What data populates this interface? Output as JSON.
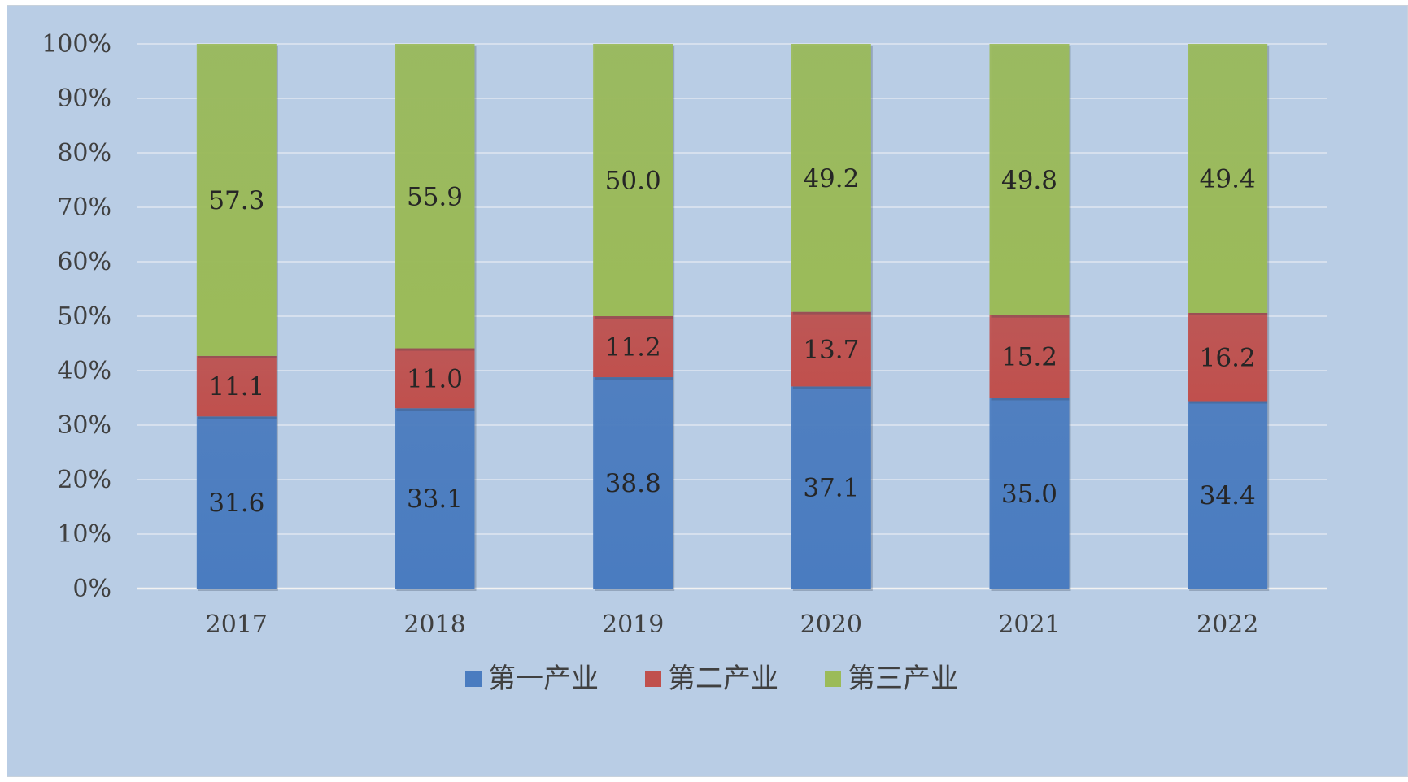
{
  "chart_data": {
    "type": "bar",
    "stacked": true,
    "percent_stacked": true,
    "categories": [
      "2017",
      "2018",
      "2019",
      "2020",
      "2021",
      "2022"
    ],
    "series": [
      {
        "name": "第一产业",
        "color": "#4a7cc0",
        "values": [
          31.6,
          33.1,
          38.8,
          37.1,
          35.0,
          34.4
        ],
        "labels": [
          "31.6",
          "33.1",
          "38.8",
          "37.1",
          "35.0",
          "34.4"
        ]
      },
      {
        "name": "第二产业",
        "color": "#c0504d",
        "values": [
          11.1,
          11.0,
          11.2,
          13.7,
          15.2,
          16.2
        ],
        "labels": [
          "11.1",
          "11.0",
          "11.2",
          "13.7",
          "15.2",
          "16.2"
        ]
      },
      {
        "name": "第三产业",
        "color": "#9bbb59",
        "values": [
          57.3,
          55.9,
          50.0,
          49.2,
          49.8,
          49.4
        ],
        "labels": [
          "57.3",
          "55.9",
          "50.0",
          "49.2",
          "49.8",
          "49.4"
        ]
      }
    ],
    "yticks": [
      "0%",
      "10%",
      "20%",
      "30%",
      "40%",
      "50%",
      "60%",
      "70%",
      "80%",
      "90%",
      "100%"
    ],
    "ylim": [
      0,
      100
    ],
    "grid": true,
    "legend_position": "bottom",
    "background_color": "#b9cde5"
  }
}
